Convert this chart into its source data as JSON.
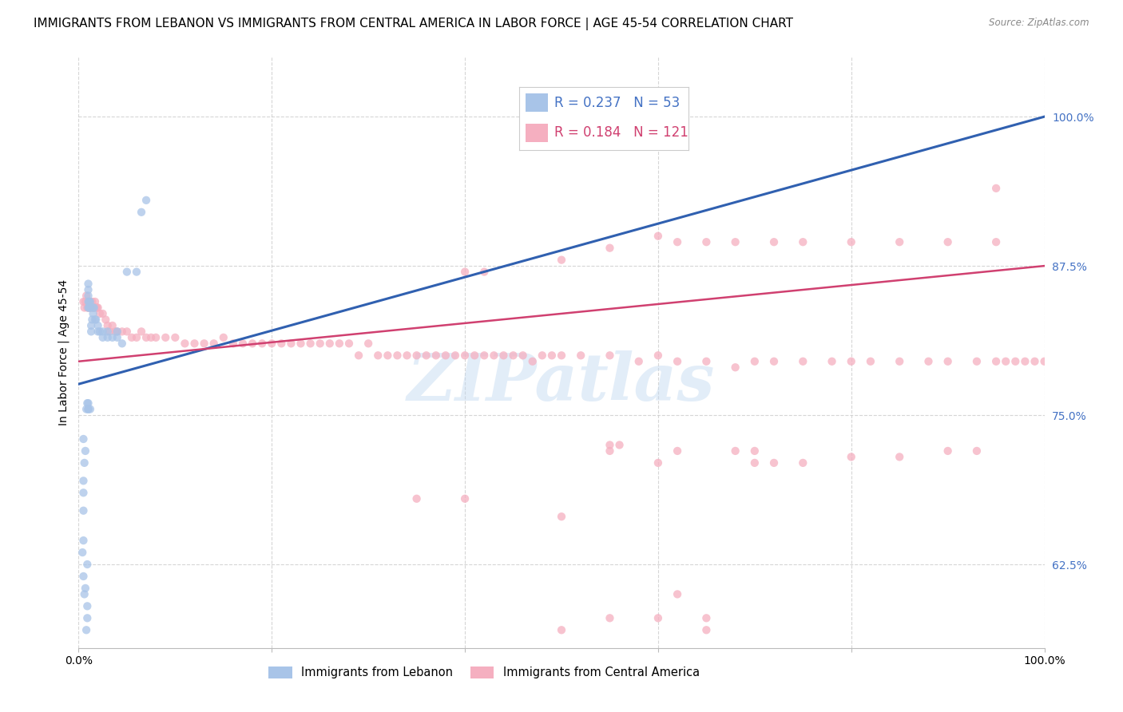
{
  "title": "IMMIGRANTS FROM LEBANON VS IMMIGRANTS FROM CENTRAL AMERICA IN LABOR FORCE | AGE 45-54 CORRELATION CHART",
  "source": "Source: ZipAtlas.com",
  "ylabel": "In Labor Force | Age 45-54",
  "xmin": 0.0,
  "xmax": 1.0,
  "ymin": 0.555,
  "ymax": 1.05,
  "yticks": [
    0.625,
    0.75,
    0.875,
    1.0
  ],
  "ytick_labels": [
    "62.5%",
    "75.0%",
    "87.5%",
    "100.0%"
  ],
  "xticks": [
    0.0,
    0.2,
    0.4,
    0.6,
    0.8,
    1.0
  ],
  "xtick_labels_show": [
    "0.0%",
    "100.0%"
  ],
  "legend_r_blue": "0.237",
  "legend_n_blue": "53",
  "legend_r_pink": "0.184",
  "legend_n_pink": "121",
  "label_blue": "Immigrants from Lebanon",
  "label_pink": "Immigrants from Central America",
  "dot_color_blue": "#a8c4e8",
  "dot_color_pink": "#f5afc0",
  "line_color_blue": "#3060b0",
  "line_color_pink": "#d04070",
  "line_color_right_axis": "#4472c4",
  "dot_alpha": 0.75,
  "dot_size": 55,
  "blue_line_start_y": 0.776,
  "blue_line_end_y": 1.0,
  "pink_line_start_y": 0.795,
  "pink_line_end_y": 0.875,
  "blue_x": [
    0.004,
    0.005,
    0.006,
    0.007,
    0.008,
    0.009,
    0.009,
    0.009,
    0.01,
    0.01,
    0.01,
    0.01,
    0.01,
    0.011,
    0.011,
    0.012,
    0.012,
    0.013,
    0.013,
    0.014,
    0.015,
    0.015,
    0.016,
    0.017,
    0.018,
    0.02,
    0.02,
    0.022,
    0.025,
    0.025,
    0.03,
    0.03,
    0.035,
    0.04,
    0.04,
    0.045,
    0.05,
    0.06,
    0.065,
    0.07,
    0.01,
    0.008,
    0.009,
    0.01,
    0.01,
    0.012,
    0.005,
    0.006,
    0.007,
    0.005,
    0.005,
    0.005,
    0.005
  ],
  "blue_y": [
    0.635,
    0.615,
    0.6,
    0.605,
    0.57,
    0.625,
    0.59,
    0.58,
    0.84,
    0.845,
    0.85,
    0.855,
    0.86,
    0.84,
    0.845,
    0.84,
    0.845,
    0.82,
    0.825,
    0.83,
    0.835,
    0.84,
    0.84,
    0.83,
    0.83,
    0.82,
    0.825,
    0.82,
    0.82,
    0.815,
    0.815,
    0.82,
    0.815,
    0.815,
    0.82,
    0.81,
    0.87,
    0.87,
    0.92,
    0.93,
    0.755,
    0.755,
    0.76,
    0.76,
    0.755,
    0.755,
    0.73,
    0.71,
    0.72,
    0.685,
    0.695,
    0.67,
    0.645
  ],
  "pink_x": [
    0.005,
    0.006,
    0.007,
    0.008,
    0.009,
    0.01,
    0.011,
    0.012,
    0.013,
    0.014,
    0.015,
    0.016,
    0.017,
    0.018,
    0.019,
    0.02,
    0.022,
    0.025,
    0.028,
    0.03,
    0.032,
    0.035,
    0.038,
    0.04,
    0.045,
    0.05,
    0.055,
    0.06,
    0.065,
    0.07,
    0.075,
    0.08,
    0.09,
    0.1,
    0.11,
    0.12,
    0.13,
    0.14,
    0.15,
    0.16,
    0.17,
    0.18,
    0.19,
    0.2,
    0.21,
    0.22,
    0.23,
    0.24,
    0.25,
    0.26,
    0.27,
    0.28,
    0.29,
    0.3,
    0.31,
    0.32,
    0.33,
    0.34,
    0.35,
    0.36,
    0.37,
    0.38,
    0.39,
    0.4,
    0.41,
    0.42,
    0.43,
    0.44,
    0.45,
    0.46,
    0.47,
    0.48,
    0.49,
    0.5,
    0.52,
    0.55,
    0.58,
    0.6,
    0.62,
    0.65,
    0.68,
    0.7,
    0.72,
    0.75,
    0.78,
    0.8,
    0.82,
    0.85,
    0.88,
    0.9,
    0.93,
    0.95,
    0.96,
    0.97,
    0.98,
    0.99,
    1.0,
    0.4,
    0.42,
    0.5,
    0.55,
    0.6,
    0.62,
    0.65,
    0.68,
    0.72,
    0.75,
    0.8,
    0.85,
    0.9,
    0.95,
    0.62,
    0.6,
    0.68,
    0.7,
    0.72,
    0.75,
    0.8,
    0.85,
    0.9,
    0.93
  ],
  "pink_y": [
    0.845,
    0.84,
    0.845,
    0.85,
    0.84,
    0.84,
    0.845,
    0.84,
    0.84,
    0.845,
    0.84,
    0.84,
    0.845,
    0.84,
    0.84,
    0.84,
    0.835,
    0.835,
    0.83,
    0.825,
    0.82,
    0.825,
    0.82,
    0.82,
    0.82,
    0.82,
    0.815,
    0.815,
    0.82,
    0.815,
    0.815,
    0.815,
    0.815,
    0.815,
    0.81,
    0.81,
    0.81,
    0.81,
    0.815,
    0.81,
    0.81,
    0.81,
    0.81,
    0.81,
    0.81,
    0.81,
    0.81,
    0.81,
    0.81,
    0.81,
    0.81,
    0.81,
    0.8,
    0.81,
    0.8,
    0.8,
    0.8,
    0.8,
    0.8,
    0.8,
    0.8,
    0.8,
    0.8,
    0.8,
    0.8,
    0.8,
    0.8,
    0.8,
    0.8,
    0.8,
    0.795,
    0.8,
    0.8,
    0.8,
    0.8,
    0.8,
    0.795,
    0.8,
    0.795,
    0.795,
    0.79,
    0.795,
    0.795,
    0.795,
    0.795,
    0.795,
    0.795,
    0.795,
    0.795,
    0.795,
    0.795,
    0.795,
    0.795,
    0.795,
    0.795,
    0.795,
    0.795,
    0.87,
    0.87,
    0.88,
    0.89,
    0.9,
    0.895,
    0.895,
    0.895,
    0.895,
    0.895,
    0.895,
    0.895,
    0.895,
    0.895,
    0.72,
    0.71,
    0.72,
    0.71,
    0.71,
    0.71,
    0.715,
    0.715,
    0.72,
    0.72
  ],
  "pink_outliers_x": [
    0.35,
    0.4,
    0.5,
    0.5,
    0.55,
    0.6,
    0.65,
    0.65,
    0.55,
    0.55,
    0.56,
    0.62,
    0.7,
    0.95
  ],
  "pink_outliers_y": [
    0.68,
    0.68,
    0.665,
    0.57,
    0.58,
    0.58,
    0.57,
    0.58,
    0.72,
    0.725,
    0.725,
    0.6,
    0.72,
    0.94
  ],
  "watermark": "ZIPatlas",
  "background_color": "#ffffff",
  "grid_color": "#cccccc",
  "grid_alpha": 0.8,
  "title_fontsize": 11,
  "axis_label_fontsize": 10,
  "tick_fontsize": 10,
  "legend_fontsize": 12
}
